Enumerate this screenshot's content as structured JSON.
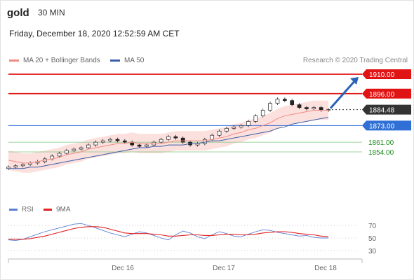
{
  "header": {
    "symbol": "gold",
    "timeframe": "30 MIN",
    "datetime": "Friday, December 18, 2020 12:52:59 AM CET"
  },
  "legend_top": {
    "items": [
      {
        "label": "MA 20 + Bollinger Bands",
        "color": "#f28b82"
      },
      {
        "label": "MA 50",
        "color": "#3a5ea8"
      }
    ]
  },
  "credit": "Research © 2020 Trading Central",
  "legend_bottom": {
    "items": [
      {
        "label": "RSI",
        "color": "#5b7fd6"
      },
      {
        "label": "9MA",
        "color": "#e02020"
      }
    ]
  },
  "chart_data": [
    {
      "type": "candlestick",
      "title": "gold 30 MIN",
      "price_range": [
        1838,
        1912
      ],
      "x_ticks": [
        "Dec 16",
        "Dec 17",
        "Dec 18"
      ],
      "levels": [
        {
          "value": "1910.00",
          "kind": "resistance",
          "color": "#e01414"
        },
        {
          "value": "1896.00",
          "kind": "resistance",
          "color": "#e01414"
        },
        {
          "value": "1884.48",
          "kind": "last-price",
          "color": "#333333"
        },
        {
          "value": "1873.00",
          "kind": "pivot",
          "color": "#2f6fd6"
        },
        {
          "value": "1861.00",
          "kind": "support",
          "color": "#1f8a1f"
        },
        {
          "value": "1854.00",
          "kind": "support",
          "color": "#1f8a1f"
        }
      ],
      "close_series": [
        1843,
        1844,
        1845,
        1846,
        1847,
        1849,
        1851,
        1853,
        1855,
        1856,
        1857,
        1859,
        1861,
        1862,
        1863,
        1862,
        1861,
        1859,
        1858,
        1859,
        1861,
        1863,
        1865,
        1864,
        1861,
        1859,
        1860,
        1863,
        1866,
        1869,
        1871,
        1872,
        1873,
        1876,
        1880,
        1884,
        1889,
        1892,
        1891,
        1888,
        1886,
        1885,
        1886,
        1884,
        1884.48
      ],
      "ma20": [
        1848,
        1847,
        1846,
        1846,
        1847,
        1848,
        1849,
        1850,
        1852,
        1853,
        1854,
        1856,
        1857,
        1858,
        1859,
        1860,
        1860,
        1861,
        1860,
        1860,
        1860,
        1860,
        1861,
        1862,
        1862,
        1862,
        1862,
        1862,
        1863,
        1864,
        1865,
        1867,
        1868,
        1870,
        1871,
        1873,
        1875,
        1878,
        1880,
        1881,
        1882,
        1883,
        1884,
        1884,
        1884
      ],
      "ma50": [
        1842,
        1842,
        1842,
        1843,
        1843,
        1844,
        1845,
        1846,
        1847,
        1848,
        1849,
        1850,
        1851,
        1852,
        1853,
        1854,
        1855,
        1856,
        1857,
        1857,
        1858,
        1858,
        1859,
        1859,
        1859,
        1860,
        1860,
        1861,
        1862,
        1862,
        1863,
        1864,
        1865,
        1866,
        1867,
        1868,
        1869,
        1871,
        1872,
        1874,
        1875,
        1876,
        1877,
        1878,
        1879
      ],
      "projection": {
        "from": 1884.48,
        "to": 1910,
        "direction": "up"
      }
    },
    {
      "type": "line",
      "title": "RSI",
      "y_ticks": [
        70,
        50,
        30
      ],
      "ylim": [
        20,
        80
      ],
      "series": [
        {
          "name": "RSI",
          "values": [
            47,
            46,
            48,
            52,
            56,
            60,
            63,
            66,
            69,
            72,
            73,
            70,
            66,
            62,
            58,
            55,
            52,
            56,
            60,
            58,
            54,
            50,
            47,
            55,
            61,
            58,
            52,
            49,
            55,
            60,
            57,
            53,
            52,
            56,
            60,
            63,
            62,
            59,
            57,
            55,
            53,
            54,
            51,
            50,
            50
          ]
        },
        {
          "name": "9MA",
          "values": [
            48,
            48,
            48,
            49,
            51,
            53,
            56,
            59,
            62,
            65,
            67,
            68,
            68,
            67,
            64,
            61,
            58,
            57,
            57,
            57,
            56,
            55,
            53,
            53,
            54,
            55,
            55,
            54,
            54,
            55,
            56,
            56,
            55,
            55,
            56,
            58,
            59,
            60,
            60,
            59,
            57,
            56,
            55,
            53,
            52
          ]
        }
      ]
    }
  ]
}
